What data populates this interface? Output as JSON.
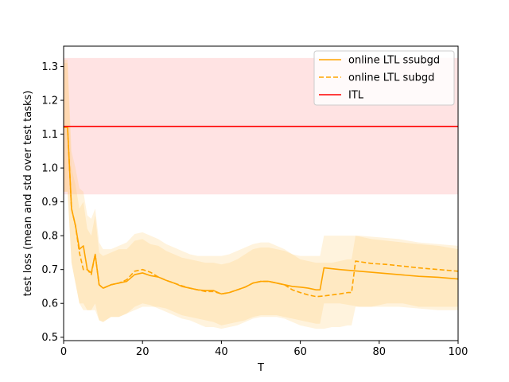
{
  "chart_data": {
    "type": "line",
    "title": "",
    "xlabel": "T",
    "ylabel": "test loss (mean and std over test tasks)",
    "xlim": [
      0,
      100
    ],
    "ylim": [
      0.49,
      1.36
    ],
    "xticks": [
      0,
      20,
      40,
      60,
      80,
      100
    ],
    "yticks": [
      0.5,
      0.6,
      0.7,
      0.8,
      0.9,
      1.0,
      1.1,
      1.2,
      1.3
    ],
    "legend_position": "top-right",
    "series": [
      {
        "name": "online LTL ssubgd",
        "color": "#FFA500",
        "style": "solid",
        "x": [
          0,
          1,
          2,
          3,
          4,
          5,
          6,
          7,
          8,
          9,
          10,
          12,
          14,
          16,
          18,
          20,
          22,
          24,
          26,
          28,
          30,
          32,
          34,
          36,
          38,
          40,
          42,
          44,
          46,
          48,
          50,
          52,
          54,
          56,
          58,
          60,
          62,
          64,
          65,
          66,
          70,
          75,
          80,
          85,
          90,
          95,
          100
        ],
        "y": [
          1.12,
          1.12,
          0.88,
          0.83,
          0.76,
          0.77,
          0.7,
          0.69,
          0.745,
          0.655,
          0.645,
          0.655,
          0.66,
          0.665,
          0.685,
          0.69,
          0.682,
          0.678,
          0.668,
          0.66,
          0.65,
          0.645,
          0.64,
          0.638,
          0.638,
          0.628,
          0.632,
          0.64,
          0.648,
          0.66,
          0.665,
          0.665,
          0.66,
          0.655,
          0.65,
          0.648,
          0.645,
          0.64,
          0.64,
          0.705,
          0.7,
          0.695,
          0.69,
          0.685,
          0.68,
          0.677,
          0.672
        ],
        "std_lower": [
          0.93,
          0.93,
          0.72,
          0.66,
          0.6,
          0.6,
          0.58,
          0.58,
          0.58,
          0.55,
          0.545,
          0.56,
          0.56,
          0.57,
          0.58,
          0.59,
          0.59,
          0.59,
          0.585,
          0.575,
          0.565,
          0.56,
          0.555,
          0.55,
          0.545,
          0.535,
          0.54,
          0.545,
          0.55,
          0.56,
          0.565,
          0.565,
          0.565,
          0.56,
          0.555,
          0.55,
          0.545,
          0.54,
          0.54,
          0.6,
          0.6,
          0.59,
          0.59,
          0.59,
          0.585,
          0.58,
          0.58
        ],
        "std_upper": [
          1.31,
          1.31,
          1.0,
          0.95,
          0.88,
          0.9,
          0.82,
          0.8,
          0.86,
          0.75,
          0.74,
          0.75,
          0.76,
          0.76,
          0.785,
          0.79,
          0.775,
          0.77,
          0.755,
          0.745,
          0.735,
          0.73,
          0.725,
          0.72,
          0.72,
          0.715,
          0.72,
          0.73,
          0.745,
          0.76,
          0.765,
          0.765,
          0.76,
          0.755,
          0.745,
          0.74,
          0.74,
          0.74,
          0.74,
          0.8,
          0.8,
          0.8,
          0.795,
          0.79,
          0.78,
          0.775,
          0.77
        ]
      },
      {
        "name": "online LTL subgd",
        "color": "#FFA500",
        "style": "dashed",
        "x": [
          0,
          1,
          2,
          3,
          4,
          5,
          6,
          7,
          8,
          9,
          10,
          12,
          14,
          16,
          18,
          20,
          22,
          24,
          26,
          28,
          30,
          32,
          34,
          36,
          38,
          40,
          42,
          44,
          46,
          48,
          50,
          52,
          54,
          56,
          58,
          60,
          62,
          64,
          66,
          68,
          70,
          72,
          73,
          74,
          78,
          82,
          86,
          90,
          95,
          100
        ],
        "y": [
          1.12,
          1.12,
          0.88,
          0.83,
          0.75,
          0.7,
          0.7,
          0.685,
          0.745,
          0.655,
          0.645,
          0.655,
          0.66,
          0.67,
          0.695,
          0.7,
          0.692,
          0.678,
          0.668,
          0.66,
          0.652,
          0.645,
          0.64,
          0.635,
          0.635,
          0.628,
          0.632,
          0.64,
          0.648,
          0.66,
          0.665,
          0.665,
          0.66,
          0.655,
          0.64,
          0.632,
          0.625,
          0.62,
          0.622,
          0.625,
          0.628,
          0.632,
          0.632,
          0.725,
          0.718,
          0.715,
          0.71,
          0.705,
          0.7,
          0.695
        ],
        "std_lower": [
          0.93,
          0.93,
          0.72,
          0.66,
          0.6,
          0.58,
          0.58,
          0.58,
          0.6,
          0.55,
          0.545,
          0.56,
          0.56,
          0.57,
          0.59,
          0.6,
          0.595,
          0.585,
          0.575,
          0.565,
          0.555,
          0.55,
          0.54,
          0.53,
          0.53,
          0.525,
          0.53,
          0.535,
          0.545,
          0.555,
          0.56,
          0.56,
          0.56,
          0.555,
          0.545,
          0.535,
          0.53,
          0.525,
          0.525,
          0.53,
          0.53,
          0.535,
          0.535,
          0.59,
          0.59,
          0.6,
          0.6,
          0.59,
          0.59,
          0.59
        ],
        "std_upper": [
          1.32,
          1.32,
          1.05,
          1.0,
          0.94,
          0.93,
          0.86,
          0.85,
          0.88,
          0.78,
          0.76,
          0.76,
          0.77,
          0.78,
          0.805,
          0.81,
          0.8,
          0.79,
          0.775,
          0.765,
          0.755,
          0.745,
          0.74,
          0.74,
          0.74,
          0.74,
          0.745,
          0.755,
          0.765,
          0.775,
          0.78,
          0.78,
          0.77,
          0.76,
          0.745,
          0.73,
          0.725,
          0.72,
          0.72,
          0.72,
          0.725,
          0.73,
          0.73,
          0.8,
          0.79,
          0.785,
          0.78,
          0.775,
          0.77,
          0.76
        ]
      },
      {
        "name": "ITL",
        "color": "#FF0000",
        "style": "solid",
        "x": [
          0,
          100
        ],
        "y": [
          1.123,
          1.123
        ],
        "std_lower": [
          0.922,
          0.922
        ],
        "std_upper": [
          1.325,
          1.325
        ]
      }
    ]
  }
}
